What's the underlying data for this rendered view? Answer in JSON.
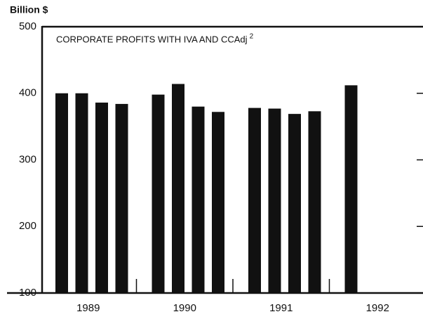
{
  "chart_data": {
    "type": "bar",
    "y_label": "Billion $",
    "title": "CORPORATE PROFITS WITH IVA AND CCAdj",
    "title_note": "2",
    "groups": [
      {
        "label": "1989",
        "values": [
          400,
          400,
          386,
          384
        ]
      },
      {
        "label": "1990",
        "values": [
          398,
          414,
          380,
          372
        ]
      },
      {
        "label": "1991",
        "values": [
          378,
          377,
          369,
          373
        ]
      },
      {
        "label": "1992",
        "values": [
          412
        ]
      }
    ],
    "color": "#111111",
    "ylim": [
      100,
      500
    ],
    "yticks": [
      100,
      200,
      300,
      400,
      500
    ]
  }
}
